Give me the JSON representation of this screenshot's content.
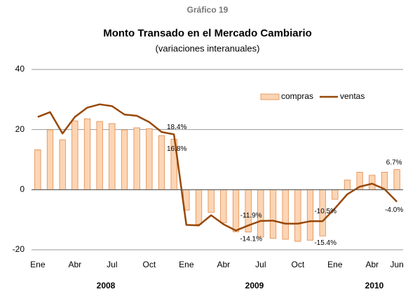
{
  "chart_data": {
    "type": "bar_line",
    "kicker": "Gráfico 19",
    "title": "Monto Transado en el Mercado Cambiario",
    "subtitle": "(variaciones interanuales)",
    "categories": [
      "Ene",
      null,
      null,
      "Abr",
      null,
      null,
      "Jul",
      null,
      null,
      "Oct",
      null,
      null,
      "Ene",
      null,
      null,
      "Abr",
      null,
      null,
      "Jul",
      null,
      null,
      "Oct",
      null,
      null,
      "Ene",
      null,
      null,
      "Abr",
      null,
      "Jun"
    ],
    "year_labels": [
      "2008",
      "2009",
      "2010"
    ],
    "series": [
      {
        "name": "compras",
        "kind": "bar",
        "color": "#fcd5b4",
        "edge": "#e38a4a",
        "values": [
          13.3,
          19.9,
          16.6,
          22.9,
          23.6,
          22.7,
          22.0,
          19.9,
          20.6,
          20.3,
          18.0,
          16.8,
          -6.8,
          -11.5,
          -7.6,
          -11.0,
          -14.0,
          -14.1,
          -15.8,
          -16.2,
          -16.5,
          -17.2,
          -16.8,
          -15.4,
          -3.2,
          3.2,
          5.8,
          4.8,
          5.8,
          6.7
        ],
        "value_labels": [
          null,
          null,
          null,
          null,
          null,
          null,
          null,
          null,
          null,
          null,
          null,
          "16.8%",
          null,
          null,
          null,
          null,
          null,
          "-14.1%",
          null,
          null,
          null,
          null,
          null,
          "-15.4%",
          null,
          null,
          null,
          null,
          null,
          "6.7%"
        ]
      },
      {
        "name": "ventas",
        "kind": "line",
        "color": "#984807",
        "values": [
          24.2,
          25.8,
          18.7,
          24.2,
          27.3,
          28.4,
          27.8,
          25.0,
          24.6,
          22.5,
          19.2,
          18.4,
          -11.7,
          -11.9,
          -8.5,
          -11.5,
          -13.6,
          -11.9,
          -10.4,
          -10.3,
          -11.3,
          -11.3,
          -10.5,
          -10.5,
          -6.2,
          -1.5,
          1.0,
          2.0,
          0.2,
          -4.0
        ],
        "value_labels": [
          null,
          null,
          null,
          null,
          null,
          null,
          null,
          null,
          null,
          null,
          null,
          "18.4%",
          null,
          null,
          null,
          null,
          null,
          "-11.9%",
          null,
          null,
          null,
          null,
          null,
          "-10.5%",
          null,
          null,
          null,
          null,
          null,
          "-4.0%"
        ]
      }
    ],
    "ylim": [
      -20,
      40
    ],
    "yticks": [
      -20,
      0,
      20,
      40
    ],
    "grid": true,
    "legend": "upper right"
  }
}
